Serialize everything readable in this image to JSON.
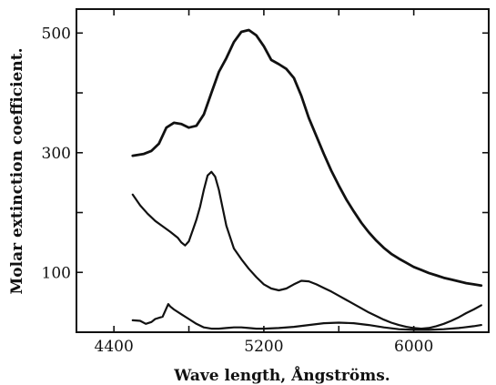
{
  "chart_data": {
    "type": "line",
    "xlabel": "Wave length, Ångströms.",
    "ylabel": "Molar extinction coefficient.",
    "xlim": [
      4200,
      6400
    ],
    "ylim": [
      0,
      540
    ],
    "x_ticks": [
      4400,
      4800,
      5200,
      5600,
      6000,
      6400
    ],
    "x_tick_labels": [
      "4400",
      "",
      "5200",
      "",
      "6000",
      ""
    ],
    "y_ticks": [
      100,
      200,
      300,
      400,
      500
    ],
    "y_tick_labels": [
      "100",
      "",
      "300",
      "",
      "500"
    ],
    "grid": false,
    "legend": "none",
    "series": [
      {
        "x": [
          4500,
          4560,
          4600,
          4640,
          4680,
          4720,
          4760,
          4800,
          4840,
          4880,
          4920,
          4960,
          5000,
          5040,
          5080,
          5120,
          5160,
          5200,
          5240,
          5280,
          5320,
          5360,
          5400,
          5440,
          5480,
          5520,
          5560,
          5600,
          5640,
          5680,
          5720,
          5760,
          5800,
          5840,
          5880,
          5920,
          5960,
          6000,
          6040,
          6080,
          6120,
          6160,
          6200,
          6240,
          6280,
          6320,
          6360
        ],
        "y": [
          295,
          298,
          303,
          315,
          342,
          350,
          348,
          342,
          345,
          364,
          400,
          435,
          458,
          485,
          502,
          505,
          496,
          478,
          455,
          448,
          440,
          425,
          395,
          358,
          328,
          298,
          270,
          245,
          222,
          202,
          183,
          167,
          153,
          141,
          131,
          123,
          116,
          109,
          104,
          99,
          95,
          91,
          88,
          85,
          82,
          80,
          78
        ]
      },
      {
        "x": [
          4500,
          4540,
          4580,
          4620,
          4660,
          4700,
          4740,
          4760,
          4780,
          4800,
          4820,
          4840,
          4860,
          4880,
          4900,
          4920,
          4940,
          4960,
          4980,
          5000,
          5040,
          5080,
          5120,
          5160,
          5200,
          5240,
          5280,
          5320,
          5360,
          5400,
          5440,
          5480,
          5520,
          5560,
          5600,
          5640,
          5680,
          5720,
          5760,
          5800,
          5840,
          5880,
          5920,
          5960,
          6000,
          6040,
          6080,
          6120,
          6160,
          6200,
          6240,
          6280,
          6320,
          6360
        ],
        "y": [
          230,
          212,
          198,
          186,
          177,
          168,
          158,
          150,
          145,
          152,
          170,
          188,
          210,
          238,
          262,
          268,
          260,
          238,
          208,
          178,
          140,
          122,
          106,
          92,
          80,
          73,
          70,
          73,
          80,
          86,
          85,
          80,
          74,
          68,
          61,
          54,
          47,
          40,
          33,
          27,
          21,
          16,
          12,
          9,
          7,
          6,
          7,
          10,
          14,
          19,
          25,
          32,
          38,
          45
        ]
      },
      {
        "x": [
          4500,
          4540,
          4570,
          4600,
          4620,
          4660,
          4690,
          4700,
          4720,
          4760,
          4800,
          4840,
          4880,
          4920,
          4960,
          5000,
          5040,
          5080,
          5120,
          5160,
          5200,
          5280,
          5360,
          5440,
          5520,
          5600,
          5680,
          5760,
          5840,
          5920,
          6000,
          6080,
          6160,
          6240,
          6320,
          6360
        ],
        "y": [
          20,
          19,
          14,
          17,
          22,
          26,
          47,
          43,
          38,
          30,
          22,
          14,
          8,
          6,
          6,
          7,
          8,
          8,
          7,
          6,
          6,
          7,
          9,
          12,
          15,
          16,
          15,
          12,
          8,
          5,
          4,
          4,
          5,
          7,
          10,
          12
        ]
      }
    ]
  }
}
